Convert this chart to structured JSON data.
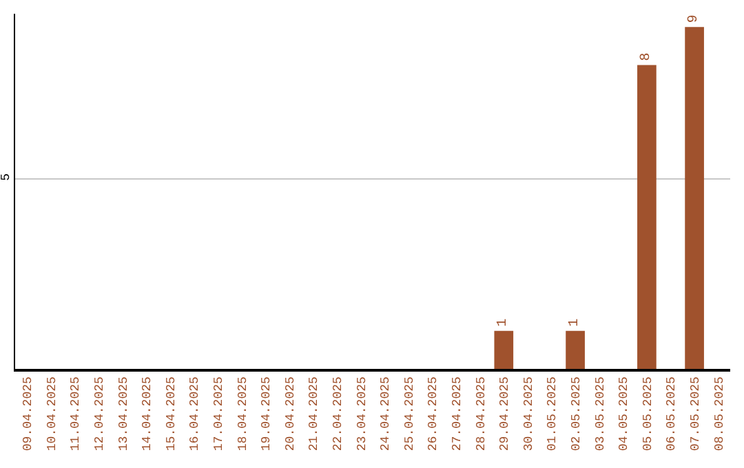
{
  "chart_data": {
    "type": "bar",
    "categories": [
      "09.04.2025",
      "10.04.2025",
      "11.04.2025",
      "12.04.2025",
      "13.04.2025",
      "14.04.2025",
      "15.04.2025",
      "16.04.2025",
      "17.04.2025",
      "18.04.2025",
      "19.04.2025",
      "20.04.2025",
      "21.04.2025",
      "22.04.2025",
      "23.04.2025",
      "24.04.2025",
      "25.04.2025",
      "26.04.2025",
      "27.04.2025",
      "28.04.2025",
      "29.04.2025",
      "30.04.2025",
      "01.05.2025",
      "02.05.2025",
      "03.05.2025",
      "04.05.2025",
      "05.05.2025",
      "06.05.2025",
      "07.05.2025",
      "08.05.2025"
    ],
    "values": [
      null,
      null,
      null,
      null,
      null,
      null,
      null,
      null,
      null,
      null,
      null,
      null,
      null,
      null,
      null,
      null,
      null,
      null,
      null,
      null,
      1,
      null,
      null,
      1,
      null,
      null,
      8,
      null,
      9,
      null
    ],
    "color": "#a0522d",
    "ylim": [
      0,
      9.35
    ],
    "yticks": [
      5
    ],
    "grid": "y",
    "data_labels": true
  }
}
